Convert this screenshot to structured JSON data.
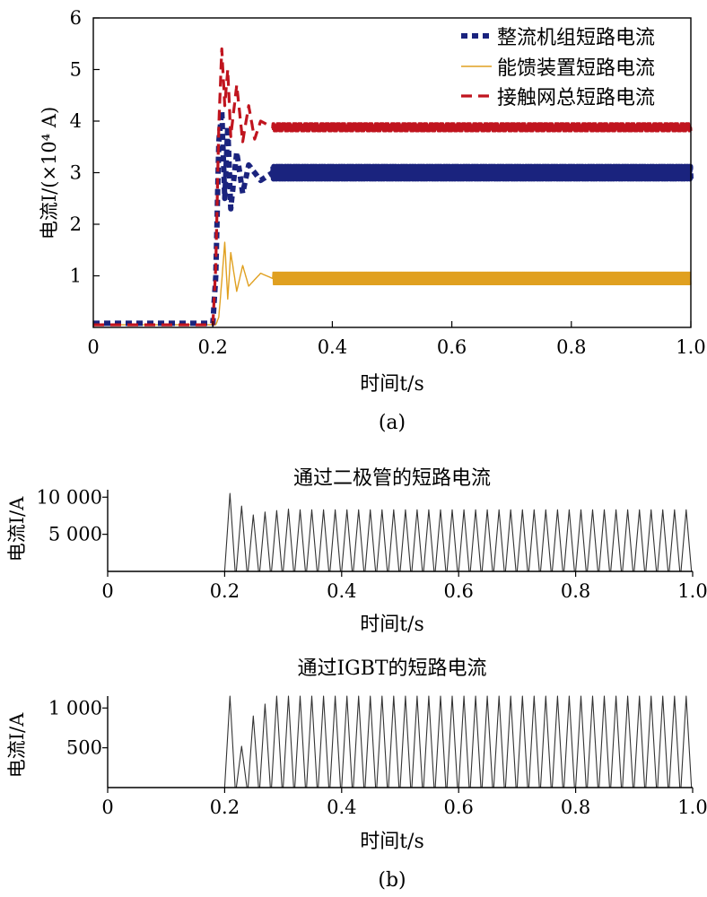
{
  "panel_a_caption": "(a)",
  "panel_b_caption": "(b)",
  "chart_data": [
    {
      "type": "line",
      "xlabel": "时间t/s",
      "ylabel": "电流I/(×10⁴ A)",
      "xlim": [
        0,
        1.0
      ],
      "ylim": [
        0,
        6
      ],
      "x_ticks": [
        0,
        0.2,
        0.4,
        0.6,
        0.8,
        1.0
      ],
      "x_tick_labels": [
        "0",
        "0.2",
        "0.4",
        "0.6",
        "0.8",
        "1.0"
      ],
      "y_ticks": [
        1,
        2,
        3,
        4,
        5,
        6
      ],
      "y_tick_labels": [
        "1",
        "2",
        "3",
        "4",
        "5",
        "6"
      ],
      "legend_position": "top-right",
      "series": [
        {
          "name": "整流机组短路电流",
          "color": "#1a237e",
          "style": "dotted",
          "x": [
            0,
            0.2,
            0.205,
            0.21,
            0.215,
            0.22,
            0.225,
            0.23,
            0.24,
            0.25,
            0.26,
            0.28,
            0.3,
            0.4,
            0.6,
            0.8,
            1.0
          ],
          "y": [
            0.08,
            0.08,
            1.0,
            3.6,
            4.2,
            2.5,
            3.9,
            2.3,
            3.4,
            2.6,
            3.15,
            2.85,
            3.0,
            3.0,
            3.0,
            3.0,
            3.0
          ],
          "ripple": 0.12
        },
        {
          "name": "能馈装置短路电流",
          "color": "#e0a020",
          "style": "solid",
          "x": [
            0,
            0.2,
            0.205,
            0.21,
            0.215,
            0.22,
            0.225,
            0.23,
            0.24,
            0.25,
            0.26,
            0.28,
            0.3,
            0.4,
            0.6,
            0.8,
            1.0
          ],
          "y": [
            0.05,
            0.05,
            0.05,
            0.2,
            0.9,
            1.65,
            0.55,
            1.45,
            0.7,
            1.2,
            0.8,
            1.05,
            0.95,
            0.95,
            0.95,
            0.95,
            0.95
          ],
          "ripple": 0.12
        },
        {
          "name": "接触网总短路电流",
          "color": "#c0141e",
          "style": "dashed",
          "x": [
            0,
            0.2,
            0.205,
            0.21,
            0.215,
            0.22,
            0.225,
            0.23,
            0.24,
            0.25,
            0.26,
            0.27,
            0.28,
            0.3,
            0.4,
            0.6,
            0.8,
            1.0
          ],
          "y": [
            0.05,
            0.05,
            1.2,
            3.9,
            5.4,
            4.3,
            5.0,
            3.7,
            4.7,
            3.6,
            4.3,
            3.65,
            4.0,
            3.88,
            3.88,
            3.88,
            3.88,
            3.88
          ],
          "ripple": 0.07
        }
      ]
    },
    {
      "type": "line",
      "title": "通过二极管的短路电流",
      "xlabel": "时间t/s",
      "ylabel": "电流I/A",
      "xlim": [
        0,
        1.0
      ],
      "ylim": [
        0,
        11000
      ],
      "x_ticks": [
        0,
        0.2,
        0.4,
        0.6,
        0.8,
        1.0
      ],
      "x_tick_labels": [
        "0",
        "0.2",
        "0.4",
        "0.6",
        "0.8",
        "1.0"
      ],
      "y_ticks": [
        5000,
        10000
      ],
      "y_tick_labels": [
        "5 000",
        "10 000"
      ],
      "series": [
        {
          "color": "#333333",
          "onset": 0.2,
          "period": 0.02,
          "peaks": [
            10500,
            8800,
            7600,
            8000,
            8200,
            8400,
            8300,
            8300
          ]
        }
      ]
    },
    {
      "type": "line",
      "title": "通过IGBT的短路电流",
      "xlabel": "时间t/s",
      "ylabel": "电流I/A",
      "xlim": [
        0,
        1.0
      ],
      "ylim": [
        0,
        1150
      ],
      "x_ticks": [
        0,
        0.2,
        0.4,
        0.6,
        0.8,
        1.0
      ],
      "x_tick_labels": [
        "0",
        "0.2",
        "0.4",
        "0.6",
        "0.8",
        "1.0"
      ],
      "y_ticks": [
        500,
        1000
      ],
      "y_tick_labels": [
        "500",
        "1 000"
      ],
      "series": [
        {
          "color": "#333333",
          "onset": 0.2,
          "period": 0.02,
          "peaks": [
            1150,
            520,
            900,
            1050,
            1150,
            1150,
            1150,
            1150
          ]
        }
      ]
    }
  ]
}
